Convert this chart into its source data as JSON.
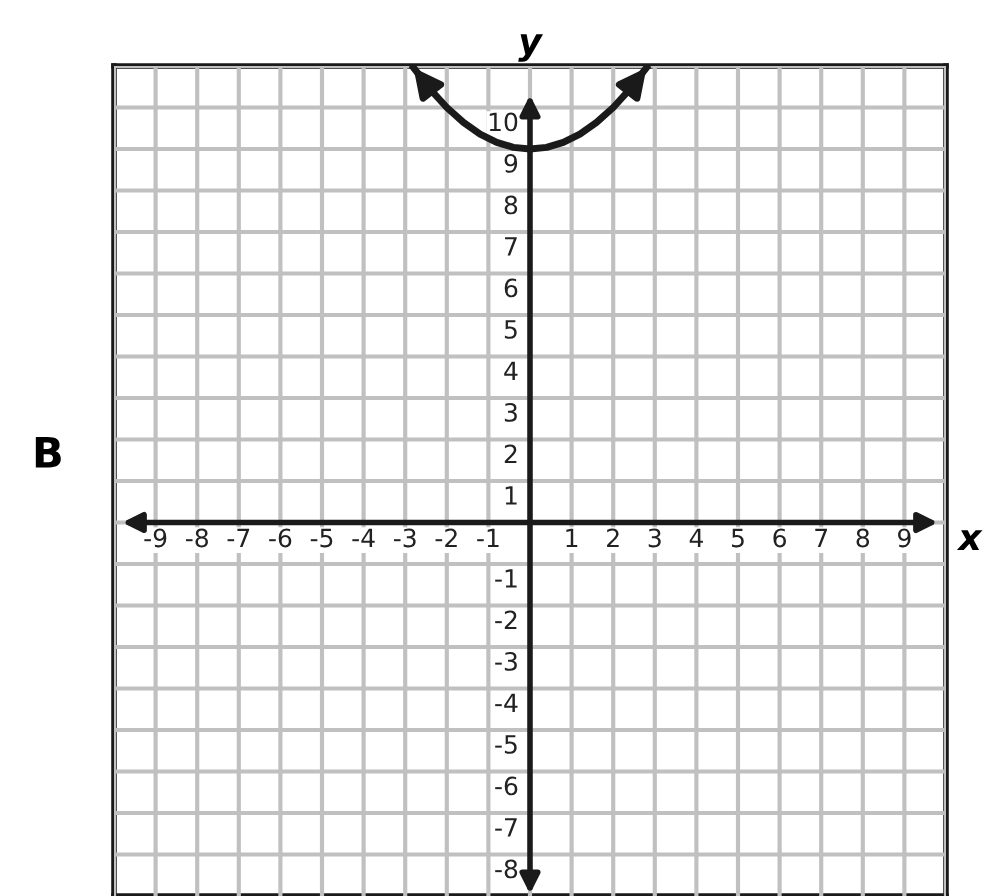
{
  "chart_data": {
    "type": "line",
    "xlabel": "x",
    "ylabel": "y",
    "annotations": [
      "B"
    ],
    "x": [
      -2.8,
      -2.4,
      -2,
      -1.6,
      -1.2,
      -0.8,
      -0.4,
      0,
      0.4,
      0.8,
      1.2,
      1.6,
      2,
      2.4,
      2.8
    ],
    "series": [
      {
        "color": "#1a1a1a",
        "values": [
          10.96,
          10.44,
          10,
          9.64,
          9.36,
          9.16,
          9.04,
          9,
          9.04,
          9.16,
          9.36,
          9.64,
          10,
          10.44,
          10.96
        ]
      }
    ],
    "xlim": [
      -10,
      10
    ],
    "ylim": [
      -9,
      11
    ],
    "xticks": [
      {
        "value": -10,
        "label": null
      },
      -9,
      -8,
      -7,
      -6,
      -5,
      -4,
      -3,
      -2,
      -1,
      {
        "value": 0,
        "label": null
      },
      1,
      2,
      3,
      4,
      5,
      6,
      7,
      8,
      9,
      {
        "value": 10,
        "label": null
      }
    ],
    "yticks": [
      -8,
      -7,
      -6,
      -5,
      -4,
      -3,
      -2,
      -1,
      {
        "value": 0,
        "label": null
      },
      1,
      2,
      3,
      4,
      5,
      6,
      7,
      8,
      9,
      10,
      {
        "value": 11,
        "label": null
      }
    ],
    "grid": true,
    "marker": "none",
    "line_style": "solid",
    "legend": false
  }
}
